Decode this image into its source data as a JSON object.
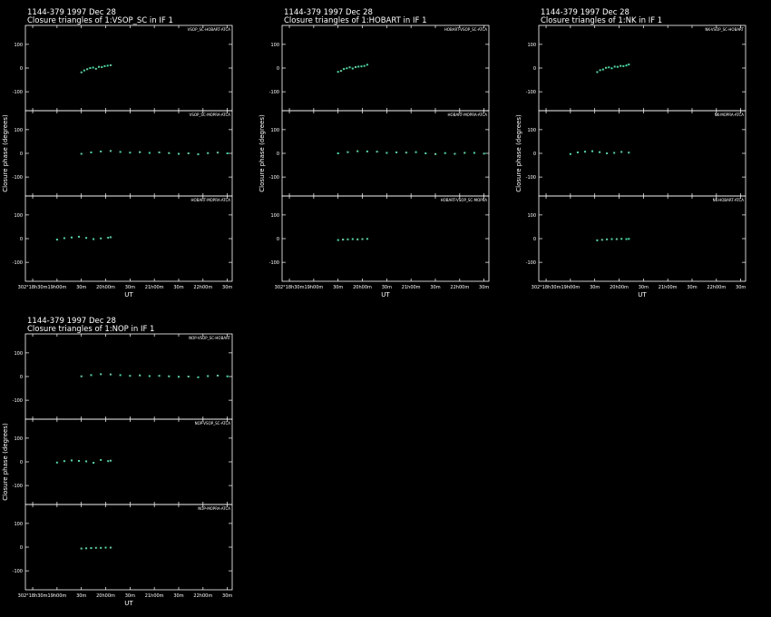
{
  "chart_data": [
    {
      "type": "scatter",
      "title": "1144-379   1997 Dec 28",
      "subtitle": "Closure triangles of 1:VSOP_SC in IF 1",
      "ylabel": "Closure phase   (degrees)",
      "xlabel": "UT",
      "color": "#40e0a8",
      "xlim": [
        18.35,
        22.6
      ],
      "xticks": [
        {
          "value": 18.5,
          "label": "302°18h30m"
        },
        {
          "value": 19,
          "label": "19h00m"
        },
        {
          "value": 19.5,
          "label": "30m"
        },
        {
          "value": 20,
          "label": "20h00m"
        },
        {
          "value": 20.5,
          "label": "30m"
        },
        {
          "value": 21,
          "label": "21h00m"
        },
        {
          "value": 21.5,
          "label": "30m"
        },
        {
          "value": 22,
          "label": "22h00m"
        },
        {
          "value": 22.5,
          "label": "30m"
        }
      ],
      "ylim": [
        -180,
        180
      ],
      "yticks": [
        -100,
        0,
        100
      ],
      "panels": [
        {
          "label": "VSOP_SC-HOBART-ATCA",
          "x": [
            19.5,
            19.56,
            19.62,
            19.68,
            19.74,
            19.8,
            19.86,
            19.92,
            19.98,
            20.04,
            20.1
          ],
          "values": [
            -18,
            -10,
            -5,
            0,
            2,
            -3,
            5,
            4,
            8,
            10,
            12
          ]
        },
        {
          "label": "VSOP_SC-MOPRA-ATCA",
          "x": [
            19.5,
            19.7,
            19.9,
            20.1,
            20.3,
            20.5,
            20.7,
            20.9,
            21.1,
            21.3,
            21.5,
            21.7,
            21.9,
            22.1,
            22.3,
            22.5
          ],
          "values": [
            -2,
            4,
            8,
            10,
            6,
            3,
            5,
            2,
            4,
            1,
            -2,
            0,
            -4,
            1,
            3,
            0
          ]
        },
        {
          "label": "HOBART-MOPRA-ATCA",
          "x": [
            19.0,
            19.15,
            19.3,
            19.45,
            19.6,
            19.75,
            19.9,
            20.05,
            20.1
          ],
          "values": [
            -4,
            2,
            5,
            8,
            3,
            -2,
            1,
            4,
            6
          ]
        }
      ]
    },
    {
      "type": "scatter",
      "title": "1144-379   1997 Dec 28",
      "subtitle": "Closure triangles of 1:HOBART in IF 1",
      "ylabel": "Closure phase   (degrees)",
      "xlabel": "UT",
      "color": "#40e0a8",
      "xlim": [
        18.35,
        22.6
      ],
      "xticks": [
        {
          "value": 18.5,
          "label": "302°18h30m"
        },
        {
          "value": 19,
          "label": "19h00m"
        },
        {
          "value": 19.5,
          "label": "30m"
        },
        {
          "value": 20,
          "label": "20h00m"
        },
        {
          "value": 20.5,
          "label": "30m"
        },
        {
          "value": 21,
          "label": "21h00m"
        },
        {
          "value": 21.5,
          "label": "30m"
        },
        {
          "value": 22,
          "label": "22h00m"
        },
        {
          "value": 22.5,
          "label": "30m"
        }
      ],
      "ylim": [
        -180,
        180
      ],
      "yticks": [
        -100,
        0,
        100
      ],
      "panels": [
        {
          "label": "HOBART-VSOP_SC-ATCA",
          "x": [
            19.5,
            19.56,
            19.62,
            19.68,
            19.74,
            19.8,
            19.86,
            19.92,
            19.98,
            20.04,
            20.1
          ],
          "values": [
            -16,
            -12,
            -4,
            -1,
            3,
            -2,
            4,
            6,
            7,
            9,
            14
          ]
        },
        {
          "label": "HOBART-MOPRA-ATCA",
          "x": [
            19.5,
            19.7,
            19.9,
            20.1,
            20.3,
            20.5,
            20.7,
            20.9,
            21.1,
            21.3,
            21.5,
            21.7,
            21.9,
            22.1,
            22.3,
            22.5
          ],
          "values": [
            0,
            5,
            9,
            8,
            7,
            2,
            4,
            3,
            5,
            0,
            -3,
            1,
            -2,
            2,
            2,
            -1
          ]
        },
        {
          "label": "HOBART-VSOP_SC-MOPRA",
          "x": [
            19.5,
            19.6,
            19.7,
            19.8,
            19.9,
            20.0,
            20.1
          ],
          "values": [
            -6,
            -4,
            -3,
            -2,
            -3,
            -2,
            -1
          ]
        }
      ]
    },
    {
      "type": "scatter",
      "title": "1144-379   1997 Dec 28",
      "subtitle": "Closure triangles of 1:NK in IF 1",
      "ylabel": "Closure phase   (degrees)",
      "xlabel": "UT",
      "color": "#40e0a8",
      "xlim": [
        18.35,
        22.6
      ],
      "xticks": [
        {
          "value": 18.5,
          "label": "302°18h30m"
        },
        {
          "value": 19,
          "label": "19h00m"
        },
        {
          "value": 19.5,
          "label": "30m"
        },
        {
          "value": 20,
          "label": "20h00m"
        },
        {
          "value": 20.5,
          "label": "30m"
        },
        {
          "value": 21,
          "label": "21h00m"
        },
        {
          "value": 21.5,
          "label": "30m"
        },
        {
          "value": 22,
          "label": "22h00m"
        },
        {
          "value": 22.5,
          "label": "30m"
        }
      ],
      "ylim": [
        -180,
        180
      ],
      "yticks": [
        -100,
        0,
        100
      ],
      "panels": [
        {
          "label": "NK-VSOP_SC-HOBART",
          "x": [
            19.55,
            19.61,
            19.67,
            19.73,
            19.79,
            19.85,
            19.91,
            19.97,
            20.03,
            20.09,
            20.15,
            20.2
          ],
          "values": [
            -17,
            -9,
            -6,
            1,
            3,
            -1,
            6,
            5,
            9,
            8,
            11,
            15
          ]
        },
        {
          "label": "NK-MOPRA-ATCA",
          "x": [
            19.0,
            19.15,
            19.3,
            19.45,
            19.6,
            19.75,
            19.9,
            20.05,
            20.2
          ],
          "values": [
            -3,
            4,
            7,
            9,
            5,
            0,
            2,
            6,
            3
          ]
        },
        {
          "label": "NK-HOBART-ATCA",
          "x": [
            19.55,
            19.65,
            19.75,
            19.85,
            19.95,
            20.05,
            20.15,
            20.2
          ],
          "values": [
            -7,
            -5,
            -3,
            -2,
            -2,
            -1,
            -2,
            -1
          ]
        }
      ]
    },
    {
      "type": "scatter",
      "title": "1144-379   1997 Dec 28",
      "subtitle": "Closure triangles of 1:NOP in IF 1",
      "ylabel": "Closure phase   (degrees)",
      "xlabel": "UT",
      "color": "#40e0a8",
      "xlim": [
        18.35,
        22.6
      ],
      "xticks": [
        {
          "value": 18.5,
          "label": "302°18h30m"
        },
        {
          "value": 19,
          "label": "19h00m"
        },
        {
          "value": 19.5,
          "label": "30m"
        },
        {
          "value": 20,
          "label": "20h00m"
        },
        {
          "value": 20.5,
          "label": "30m"
        },
        {
          "value": 21,
          "label": "21h00m"
        },
        {
          "value": 21.5,
          "label": "30m"
        },
        {
          "value": 22,
          "label": "22h00m"
        },
        {
          "value": 22.5,
          "label": "30m"
        }
      ],
      "ylim": [
        -180,
        180
      ],
      "yticks": [
        -100,
        0,
        100
      ],
      "panels": [
        {
          "label": "NOP-VSOP_SC-HOBART",
          "x": [
            19.5,
            19.7,
            19.9,
            20.1,
            20.3,
            20.5,
            20.7,
            20.9,
            21.1,
            21.3,
            21.5,
            21.7,
            21.9,
            22.1,
            22.3,
            22.5
          ],
          "values": [
            1,
            6,
            10,
            9,
            6,
            3,
            5,
            2,
            3,
            1,
            -1,
            0,
            -3,
            2,
            4,
            1
          ]
        },
        {
          "label": "NOP-VSOP_SC-ATCA",
          "x": [
            19.0,
            19.15,
            19.3,
            19.45,
            19.6,
            19.75,
            19.9,
            20.05,
            20.1
          ],
          "values": [
            -3,
            3,
            6,
            4,
            2,
            -4,
            8,
            3,
            5
          ]
        },
        {
          "label": "NOP-MOPRA-ATCA",
          "x": [
            19.5,
            19.6,
            19.7,
            19.8,
            19.9,
            20.0,
            20.1
          ],
          "values": [
            -6,
            -5,
            -4,
            -3,
            -3,
            -2,
            -2
          ]
        }
      ]
    }
  ]
}
